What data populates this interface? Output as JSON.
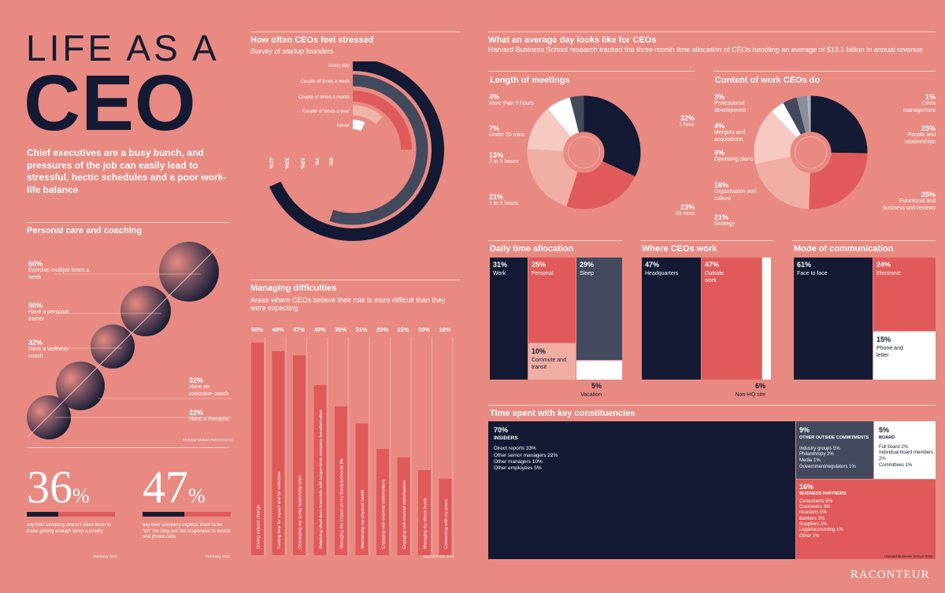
{
  "header": {
    "title_line1": "LIFE AS A",
    "title_line2": "CEO",
    "intro": "Chief executives are a busy bunch, and pressures of the job can easily lead to stressful, hectic schedules and a poor work-life balance"
  },
  "personal_care": {
    "title": "Personal care and coaching",
    "source": "Harvard Venture Partners 2016",
    "items": [
      {
        "pct": "60%",
        "label": "Exercise multiple times a week"
      },
      {
        "pct": "50%",
        "label": "Have a personal trainer"
      },
      {
        "pct": "32%",
        "label": "Have a wellness coach"
      },
      {
        "pct": "32%",
        "label": "Have an executive coach"
      },
      {
        "pct": "22%",
        "label": "Have a therapist"
      }
    ]
  },
  "stats": [
    {
      "num": "36",
      "sym": "%",
      "text": "say their company doesn't allow them to make getting enough sleep a priority",
      "source": "McKinsey 2016",
      "value": 36
    },
    {
      "num": "47",
      "sym": "%",
      "text": "say their company expects them to be \"on\" too long and too responsive to emails and phone calls",
      "source": "McKinsey 2016",
      "value": 47
    }
  ],
  "stress": {
    "title": "How often CEOs feel stressed",
    "subtitle": "Survey of startup founders",
    "labels": [
      "Every day",
      "Couple of times a week",
      "Couple of times a month",
      "Couple of times a year",
      "Never"
    ],
    "values_text": [
      "41%",
      "33%",
      "15%",
      "7%",
      "4%"
    ]
  },
  "difficulties": {
    "title": "Managing difficulties",
    "subtitle": "Areas where CEOs believe their role is more difficult than they were expecting",
    "source": "EgonZehnder 2016"
  },
  "average_day": {
    "title": "What an average day looks like for CEOs",
    "subtitle": "Harvard Business School research tracked the three-month time allocation of CEOs handling an average of $13.1 billion in annual revenue"
  },
  "meetings": {
    "title": "Length of meetings",
    "labels": [
      {
        "pct": "4%",
        "text": "More than 5 hours"
      },
      {
        "pct": "7%",
        "text": "Under 15 mins"
      },
      {
        "pct": "13%",
        "text": "2 to 5 hours"
      },
      {
        "pct": "21%",
        "text": "1 to 2 hours"
      },
      {
        "pct": "23%",
        "text": "30 mins"
      },
      {
        "pct": "32%",
        "text": "1 hour"
      }
    ]
  },
  "content": {
    "title": "Content of work CEOs do",
    "labels": [
      {
        "pct": "3%",
        "text": "Professional development"
      },
      {
        "pct": "4%",
        "text": "Mergers and acquisitions"
      },
      {
        "pct": "4%",
        "text": "Operating plans"
      },
      {
        "pct": "16%",
        "text": "Organisation and culture"
      },
      {
        "pct": "21%",
        "text": "Strategy"
      },
      {
        "pct": "1%",
        "text": "Crisis management"
      },
      {
        "pct": "25%",
        "text": "People and relationships"
      },
      {
        "pct": "25%",
        "text": "Functional and business unit reviews"
      }
    ]
  },
  "daily": {
    "title": "Daily time allocation",
    "work": {
      "pct": "31%",
      "label": "Work"
    },
    "personal": {
      "pct": "25%",
      "label": "Personal"
    },
    "sleep": {
      "pct": "29%",
      "label": "Sleep"
    },
    "commute": {
      "pct": "10%",
      "label": "Commute and transit"
    },
    "vacation": {
      "pct": "5%",
      "label": "Vacation"
    }
  },
  "where": {
    "title": "Where CEOs work",
    "hq": {
      "pct": "47%",
      "label": "Headquarters"
    },
    "outside": {
      "pct": "47%",
      "label": "Outside work"
    },
    "nonhq": {
      "pct": "6%",
      "label": "Non-HQ site"
    }
  },
  "comm": {
    "title": "Mode of communication",
    "face": {
      "pct": "61%",
      "label": "Face to face"
    },
    "electronic": {
      "pct": "24%",
      "label": "Electronic"
    },
    "phone": {
      "pct": "15%",
      "label": "Phone and letter"
    }
  },
  "constituencies": {
    "title": "Time spent with key constituencies",
    "source": "Harvard Business School 2016",
    "insiders": {
      "pct": "70%",
      "label": "INSIDERS",
      "lines": [
        "Direct reports 33%",
        "Other senior managers 22%",
        "Other managers 10%",
        "Other employees 5%"
      ]
    },
    "outside": {
      "pct": "9%",
      "label": "OTHER OUTSIDE COMMITMENTS",
      "lines": [
        "Industry groups 5%",
        "Philanthropy 2%",
        "Media 1%",
        "Government/regulators 1%"
      ]
    },
    "board": {
      "pct": "5%",
      "label": "BOARD",
      "lines": [
        "Full board 2%",
        "Individual board members 2%",
        "Committees 1%"
      ]
    },
    "partners": {
      "pct": "16%",
      "label": "BUSINESS PARTNERS",
      "lines": [
        "Consultants 5%",
        "Customers 3%",
        "Investors 3%",
        "Bankers 2%",
        "Suppliers 1%",
        "Legal/accounting 1%",
        "Other 1%"
      ]
    }
  },
  "brand": "RACONTEUR",
  "chart_data": [
    {
      "type": "bar",
      "title": "How often CEOs feel stressed",
      "subtitle": "Survey of startup founders",
      "categories": [
        "Every day",
        "Couple of times a week",
        "Couple of times a month",
        "Couple of times a year",
        "Never"
      ],
      "values": [
        41,
        33,
        15,
        7,
        4
      ],
      "colors": [
        "#141a33",
        "#434a5e",
        "#e05a5a",
        "#f0b3aa",
        "#ffffff"
      ]
    },
    {
      "type": "bar",
      "title": "Managing difficulties",
      "categories": [
        "Driving cultural change",
        "Finding time for myself and for reflection",
        "Developing my senior leadership team",
        "Balancing short-term financials with longer-term company transformation",
        "Managing the impact on my family/personal life",
        "Maintaining my physical health",
        "Engaging with external stakeholders",
        "Engaging with internal stakeholders",
        "Managing my stress levels",
        "Connecting with my peers"
      ],
      "values": [
        50,
        48,
        47,
        40,
        35,
        31,
        25,
        23,
        20,
        18
      ],
      "labels": [
        "50%",
        "48%",
        "47%",
        "40%",
        "35%",
        "31%",
        "25%",
        "23%",
        "20%",
        "18%"
      ]
    },
    {
      "type": "pie",
      "title": "Length of meetings",
      "categories": [
        "1 hour",
        "30 mins",
        "1 to 2 hours",
        "2 to 5 hours",
        "Under 15 mins",
        "More than 5 hours"
      ],
      "values": [
        32,
        23,
        21,
        13,
        7,
        4
      ],
      "colors": [
        "#141a33",
        "#e05a5a",
        "#f0ada4",
        "#f5cac3",
        "#ffffff",
        "#434a5e"
      ]
    },
    {
      "type": "pie",
      "title": "Content of work CEOs do",
      "categories": [
        "People and relationships",
        "Functional and business unit reviews",
        "Strategy",
        "Organisation and culture",
        "Operating plans",
        "Mergers and acquisitions",
        "Professional development",
        "Crisis management"
      ],
      "values": [
        25,
        25,
        21,
        16,
        4,
        4,
        3,
        1
      ],
      "colors": [
        "#141a33",
        "#e05a5a",
        "#f0ada4",
        "#f5cac3",
        "#ffffff",
        "#434a5e",
        "#8a8f9c",
        "#b0b4bd"
      ]
    }
  ]
}
